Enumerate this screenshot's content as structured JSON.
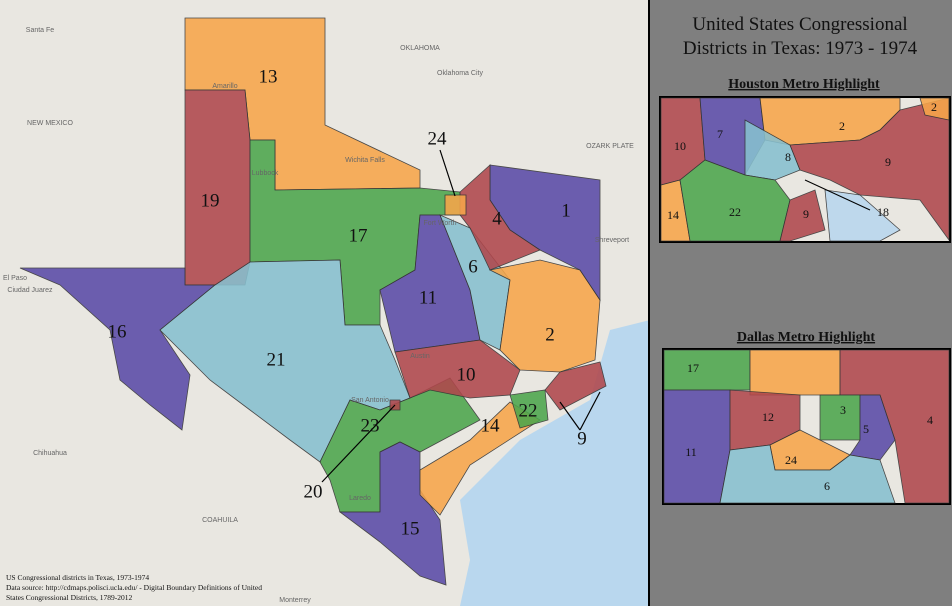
{
  "title": [
    "United States Congressional",
    "Districts in Texas: 1973 - 1974"
  ],
  "districts": [
    "13",
    "19",
    "24",
    "17",
    "4",
    "1",
    "16",
    "11",
    "6",
    "21",
    "2",
    "10",
    "20",
    "23",
    "22",
    "14",
    "9",
    "15"
  ],
  "insets": [
    {
      "title": "Houston Metro Highlight",
      "labels": [
        "7",
        "10",
        "2",
        "2",
        "8",
        "9",
        "14",
        "22",
        "9",
        "18"
      ]
    },
    {
      "title": "Dallas Metro Highlight",
      "labels": [
        "17",
        "12",
        "3",
        "4",
        "5",
        "11",
        "24",
        "6"
      ]
    }
  ],
  "place_labels": [
    "OKLAHOMA",
    "Oklahoma City",
    "NEW MEXICO",
    "OZARK PLATE",
    "Santa Fe",
    "Amarillo",
    "Lubbock",
    "El Paso",
    "Ciudad Juarez",
    "Chihuahua",
    "COAHUILA",
    "Monterrey",
    "Austin",
    "San Antonio",
    "Fort Worth",
    "Laredo",
    "Wichita Falls",
    "Shreveport"
  ],
  "source": [
    "US Congressional districts in Texas, 1973-1974",
    "Data source: http://cdmaps.polisci.ucla.edu/ - Digital Boundary Definitions of United",
    "States Congressional Districts, 1789-2012"
  ]
}
